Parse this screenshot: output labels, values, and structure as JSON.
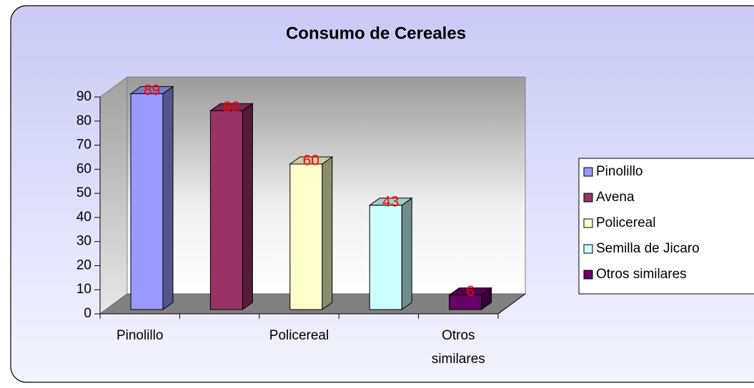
{
  "chart_data": {
    "type": "bar3d",
    "title": "Consumo de Cereales",
    "categories": [
      "Pinolillo",
      "Avena",
      "Policereal",
      "Semilla de Jicaro",
      "Otros similares"
    ],
    "values": [
      89,
      82,
      60,
      43,
      6
    ],
    "colors": [
      "#9999ff",
      "#993366",
      "#ffffcc",
      "#ccffff",
      "#660066"
    ],
    "value_label_color": "#ff0000",
    "ylim": [
      0,
      90
    ],
    "yticks": [
      0,
      10,
      20,
      30,
      40,
      50,
      60,
      70,
      80,
      90
    ],
    "xtick_step": 2,
    "grid": false,
    "legend": "right"
  }
}
